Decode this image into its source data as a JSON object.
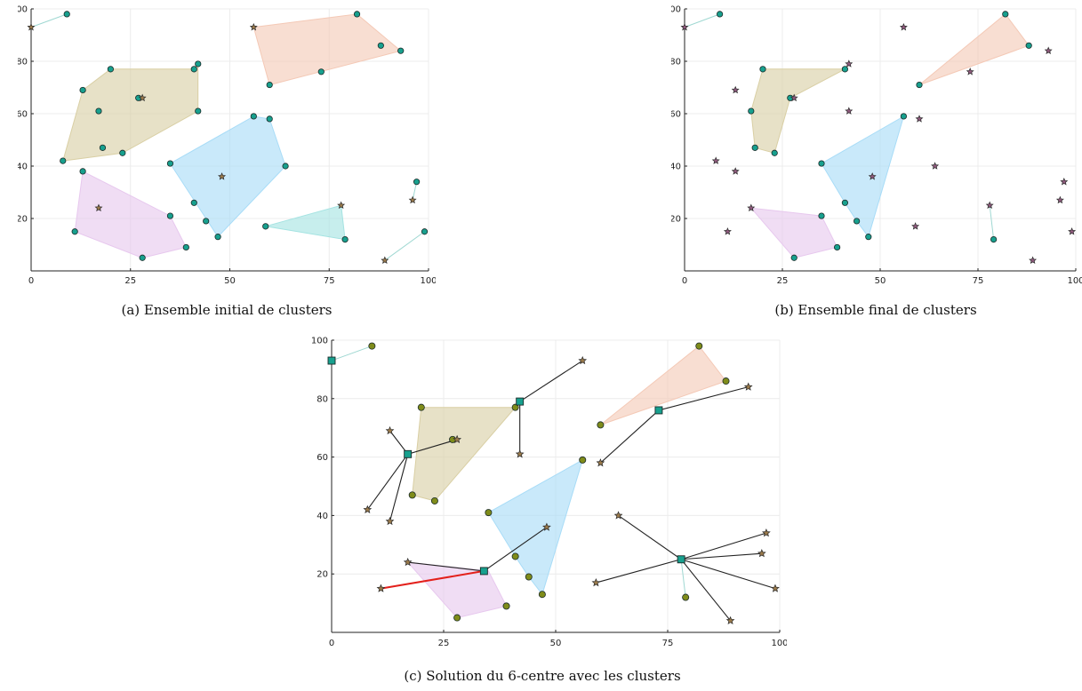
{
  "colors": {
    "hull_palette": [
      "#d9cfa4",
      "#f4c9b6",
      "#a8dcf7",
      "#e7c8ee",
      "#a5e3e2"
    ],
    "cluster_point": "#17a08e",
    "star": "#9a7a4b",
    "star_panel_b": "#8f5a7d",
    "center": "#17a08e",
    "assigned_point": "#7f8c1a",
    "link": "#222222",
    "critical_link": "#e3201b",
    "grid": "#ececec"
  },
  "chart_data": [
    {
      "type": "scatter",
      "caption": "(a) Ensemble initial de clusters",
      "xlim": [
        0,
        100
      ],
      "ylim": [
        0,
        100
      ],
      "xticks": [
        0,
        25,
        50,
        75,
        100
      ],
      "yticks": [
        20,
        40,
        60,
        80,
        100
      ],
      "grid": true,
      "title": "",
      "xlabel": "",
      "ylabel": "",
      "hulls": [
        {
          "color_index": 0,
          "points": [
            [
              8,
              42
            ],
            [
              13,
              69
            ],
            [
              20,
              77
            ],
            [
              41,
              77
            ],
            [
              42,
              79
            ],
            [
              42,
              61
            ],
            [
              23,
              45
            ]
          ]
        },
        {
          "color_index": 1,
          "points": [
            [
              56,
              93
            ],
            [
              82,
              98
            ],
            [
              93,
              84
            ],
            [
              60,
              71
            ]
          ]
        },
        {
          "color_index": 2,
          "points": [
            [
              35,
              41
            ],
            [
              56,
              59
            ],
            [
              60,
              58
            ],
            [
              64,
              40
            ],
            [
              47,
              13
            ]
          ]
        },
        {
          "color_index": 3,
          "points": [
            [
              13,
              38
            ],
            [
              35,
              21
            ],
            [
              39,
              9
            ],
            [
              28,
              5
            ],
            [
              11,
              15
            ]
          ]
        },
        {
          "color_index": 4,
          "points": [
            [
              59,
              17
            ],
            [
              78,
              25
            ],
            [
              79,
              12
            ]
          ]
        }
      ],
      "pair_lines": [
        [
          [
            0,
            93
          ],
          [
            9,
            98
          ]
        ],
        [
          [
            96,
            27
          ],
          [
            97,
            34
          ]
        ],
        [
          [
            89,
            4
          ],
          [
            99,
            15
          ]
        ]
      ],
      "points": [
        [
          9,
          98
        ],
        [
          13,
          69
        ],
        [
          20,
          77
        ],
        [
          27,
          66
        ],
        [
          42,
          79
        ],
        [
          41,
          77
        ],
        [
          17,
          61
        ],
        [
          42,
          61
        ],
        [
          8,
          42
        ],
        [
          18,
          47
        ],
        [
          23,
          45
        ],
        [
          82,
          98
        ],
        [
          88,
          86
        ],
        [
          93,
          84
        ],
        [
          73,
          76
        ],
        [
          60,
          71
        ],
        [
          56,
          59
        ],
        [
          60,
          58
        ],
        [
          35,
          41
        ],
        [
          64,
          40
        ],
        [
          41,
          26
        ],
        [
          44,
          19
        ],
        [
          47,
          13
        ],
        [
          13,
          38
        ],
        [
          35,
          21
        ],
        [
          11,
          15
        ],
        [
          39,
          9
        ],
        [
          28,
          5
        ],
        [
          59,
          17
        ],
        [
          79,
          12
        ],
        [
          97,
          34
        ],
        [
          99,
          15
        ]
      ],
      "stars": [
        [
          0,
          93
        ],
        [
          56,
          93
        ],
        [
          28,
          66
        ],
        [
          48,
          36
        ],
        [
          17,
          24
        ],
        [
          78,
          25
        ],
        [
          96,
          27
        ],
        [
          89,
          4
        ]
      ]
    },
    {
      "type": "scatter",
      "caption": "(b) Ensemble final de clusters",
      "xlim": [
        0,
        100
      ],
      "ylim": [
        0,
        100
      ],
      "xticks": [
        0,
        25,
        50,
        75,
        100
      ],
      "yticks": [
        20,
        40,
        60,
        80,
        100
      ],
      "grid": true,
      "title": "",
      "xlabel": "",
      "ylabel": "",
      "hulls": [
        {
          "color_index": 0,
          "points": [
            [
              20,
              77
            ],
            [
              41,
              77
            ],
            [
              27,
              66
            ],
            [
              23,
              45
            ],
            [
              18,
              47
            ],
            [
              17,
              61
            ]
          ]
        },
        {
          "color_index": 1,
          "points": [
            [
              82,
              98
            ],
            [
              88,
              86
            ],
            [
              60,
              71
            ]
          ]
        },
        {
          "color_index": 2,
          "points": [
            [
              35,
              41
            ],
            [
              56,
              59
            ],
            [
              47,
              13
            ],
            [
              44,
              19
            ],
            [
              41,
              26
            ]
          ]
        },
        {
          "color_index": 3,
          "points": [
            [
              17,
              24
            ],
            [
              35,
              21
            ],
            [
              39,
              9
            ],
            [
              28,
              5
            ]
          ]
        }
      ],
      "pair_lines": [
        [
          [
            0,
            93
          ],
          [
            9,
            98
          ]
        ],
        [
          [
            78,
            25
          ],
          [
            79,
            12
          ]
        ]
      ],
      "points": [
        [
          9,
          98
        ],
        [
          20,
          77
        ],
        [
          41,
          77
        ],
        [
          27,
          66
        ],
        [
          17,
          61
        ],
        [
          18,
          47
        ],
        [
          23,
          45
        ],
        [
          82,
          98
        ],
        [
          88,
          86
        ],
        [
          60,
          71
        ],
        [
          56,
          59
        ],
        [
          35,
          41
        ],
        [
          41,
          26
        ],
        [
          35,
          21
        ],
        [
          44,
          19
        ],
        [
          47,
          13
        ],
        [
          39,
          9
        ],
        [
          28,
          5
        ],
        [
          79,
          12
        ]
      ],
      "stars": [
        [
          0,
          93
        ],
        [
          56,
          93
        ],
        [
          42,
          79
        ],
        [
          93,
          84
        ],
        [
          13,
          69
        ],
        [
          28,
          66
        ],
        [
          73,
          76
        ],
        [
          42,
          61
        ],
        [
          60,
          58
        ],
        [
          8,
          42
        ],
        [
          13,
          38
        ],
        [
          64,
          40
        ],
        [
          48,
          36
        ],
        [
          17,
          24
        ],
        [
          11,
          15
        ],
        [
          59,
          17
        ],
        [
          78,
          25
        ],
        [
          96,
          27
        ],
        [
          97,
          34
        ],
        [
          99,
          15
        ],
        [
          89,
          4
        ]
      ]
    },
    {
      "type": "scatter",
      "caption": "(c) Solution du 6-centre avec les clusters",
      "xlim": [
        0,
        100
      ],
      "ylim": [
        0,
        100
      ],
      "xticks": [
        0,
        25,
        50,
        75,
        100
      ],
      "yticks": [
        20,
        40,
        60,
        80,
        100
      ],
      "grid": true,
      "title": "",
      "xlabel": "",
      "ylabel": "",
      "hulls": [
        {
          "color_index": 0,
          "points": [
            [
              20,
              77
            ],
            [
              41,
              77
            ],
            [
              23,
              45
            ],
            [
              18,
              47
            ]
          ]
        },
        {
          "color_index": 1,
          "points": [
            [
              82,
              98
            ],
            [
              88,
              86
            ],
            [
              60,
              71
            ]
          ]
        },
        {
          "color_index": 2,
          "points": [
            [
              35,
              41
            ],
            [
              56,
              59
            ],
            [
              47,
              13
            ],
            [
              44,
              19
            ],
            [
              41,
              26
            ]
          ]
        },
        {
          "color_index": 3,
          "points": [
            [
              17,
              24
            ],
            [
              35,
              21
            ],
            [
              39,
              9
            ],
            [
              28,
              5
            ]
          ]
        }
      ],
      "pair_lines": [
        [
          [
            0,
            93
          ],
          [
            9,
            98
          ]
        ],
        [
          [
            78,
            25
          ],
          [
            79,
            12
          ]
        ]
      ],
      "centers": [
        [
          0,
          93
        ],
        [
          42,
          79
        ],
        [
          17,
          61
        ],
        [
          73,
          76
        ],
        [
          34,
          21
        ],
        [
          78,
          25
        ]
      ],
      "links": [
        [
          [
            42,
            79
          ],
          [
            56,
            93
          ]
        ],
        [
          [
            42,
            79
          ],
          [
            42,
            61
          ]
        ],
        [
          [
            42,
            79
          ],
          [
            41,
            77
          ]
        ],
        [
          [
            17,
            61
          ],
          [
            13,
            69
          ]
        ],
        [
          [
            17,
            61
          ],
          [
            28,
            66
          ]
        ],
        [
          [
            17,
            61
          ],
          [
            8,
            42
          ]
        ],
        [
          [
            17,
            61
          ],
          [
            13,
            38
          ]
        ],
        [
          [
            73,
            76
          ],
          [
            93,
            84
          ]
        ],
        [
          [
            73,
            76
          ],
          [
            60,
            58
          ]
        ],
        [
          [
            34,
            21
          ],
          [
            17,
            24
          ]
        ],
        [
          [
            34,
            21
          ],
          [
            48,
            36
          ]
        ],
        [
          [
            78,
            25
          ],
          [
            64,
            40
          ]
        ],
        [
          [
            78,
            25
          ],
          [
            59,
            17
          ]
        ],
        [
          [
            78,
            25
          ],
          [
            97,
            34
          ]
        ],
        [
          [
            78,
            25
          ],
          [
            96,
            27
          ]
        ],
        [
          [
            78,
            25
          ],
          [
            99,
            15
          ]
        ],
        [
          [
            78,
            25
          ],
          [
            89,
            4
          ]
        ]
      ],
      "critical_link": [
        [
          11,
          15
        ],
        [
          34,
          21
        ]
      ],
      "points": [
        [
          9,
          98
        ],
        [
          20,
          77
        ],
        [
          41,
          77
        ],
        [
          27,
          66
        ],
        [
          18,
          47
        ],
        [
          23,
          45
        ],
        [
          82,
          98
        ],
        [
          88,
          86
        ],
        [
          60,
          71
        ],
        [
          56,
          59
        ],
        [
          35,
          41
        ],
        [
          41,
          26
        ],
        [
          44,
          19
        ],
        [
          47,
          13
        ],
        [
          39,
          9
        ],
        [
          28,
          5
        ],
        [
          79,
          12
        ]
      ],
      "stars": [
        [
          56,
          93
        ],
        [
          42,
          61
        ],
        [
          13,
          69
        ],
        [
          28,
          66
        ],
        [
          93,
          84
        ],
        [
          60,
          58
        ],
        [
          8,
          42
        ],
        [
          13,
          38
        ],
        [
          64,
          40
        ],
        [
          48,
          36
        ],
        [
          17,
          24
        ],
        [
          11,
          15
        ],
        [
          59,
          17
        ],
        [
          97,
          34
        ],
        [
          96,
          27
        ],
        [
          99,
          15
        ],
        [
          89,
          4
        ]
      ]
    }
  ]
}
